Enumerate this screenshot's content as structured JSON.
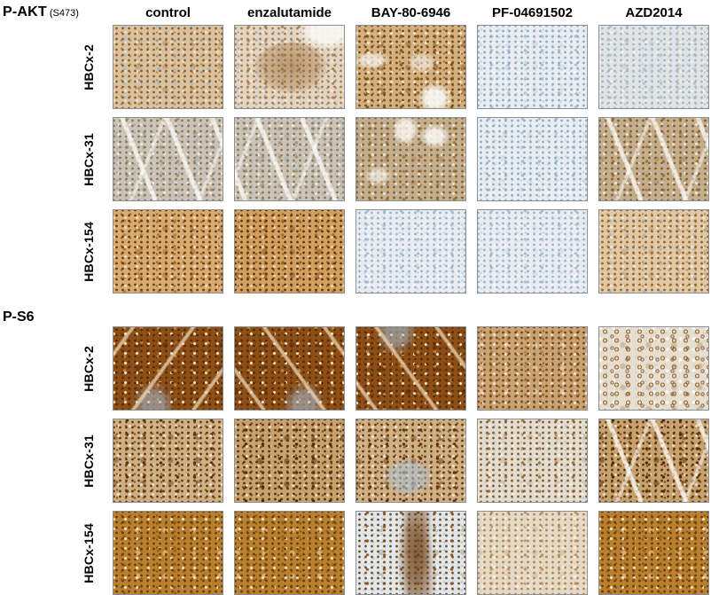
{
  "figure": {
    "treatments": [
      "control",
      "enzalutamide",
      "BAY-80-6946",
      "PF-04691502",
      "AZD2014"
    ],
    "palette": {
      "dab_strong": "#7a4410",
      "dab_moderate": "#9a6a30",
      "dab_weak": "#c89a64",
      "hematoxylin_blue": "#9db8d2",
      "tile_border": "#8a9097",
      "background": "#ffffff"
    },
    "panels": [
      {
        "id": "pakt",
        "label": "P-AKT",
        "label_sub": "(S473)",
        "rows": [
          {
            "model": "HBCx-2",
            "cells": [
              {
                "treatment": "control",
                "intensity": "moderate",
                "variant": "akt-mod",
                "features": []
              },
              {
                "treatment": "enzalutamide",
                "intensity": "moderate focal",
                "variant": "akt-cluster",
                "features": [
                  "cluster",
                  "palecorner"
                ]
              },
              {
                "treatment": "BAY-80-6946",
                "intensity": "strong patchy",
                "variant": "akt-strong",
                "features": [
                  "palegaps"
                ]
              },
              {
                "treatment": "PF-04691502",
                "intensity": "negative",
                "variant": "pale-blue",
                "features": []
              },
              {
                "treatment": "AZD2014",
                "intensity": "weak",
                "variant": "pale-bluegray",
                "features": []
              }
            ]
          },
          {
            "model": "HBCx-31",
            "cells": [
              {
                "treatment": "control",
                "intensity": "weak-moderate",
                "variant": "graytan",
                "features": [
                  "streaks"
                ]
              },
              {
                "treatment": "enzalutamide",
                "intensity": "weak-moderate",
                "variant": "graytan",
                "features": [
                  "streaks"
                ]
              },
              {
                "treatment": "BAY-80-6946",
                "intensity": "moderate",
                "variant": "tan-streaks",
                "features": [
                  "lumens"
                ]
              },
              {
                "treatment": "PF-04691502",
                "intensity": "negative",
                "variant": "pale-blue",
                "features": []
              },
              {
                "treatment": "AZD2014",
                "intensity": "moderate",
                "variant": "tan-streaks",
                "features": [
                  "streaks"
                ]
              }
            ]
          },
          {
            "model": "HBCx-154",
            "cells": [
              {
                "treatment": "control",
                "intensity": "strong",
                "variant": "orange",
                "features": []
              },
              {
                "treatment": "enzalutamide",
                "intensity": "strong",
                "variant": "orange-strong",
                "features": []
              },
              {
                "treatment": "BAY-80-6946",
                "intensity": "negative",
                "variant": "pale-blue-fine",
                "features": []
              },
              {
                "treatment": "PF-04691502",
                "intensity": "negative",
                "variant": "pale-blue-fine",
                "features": []
              },
              {
                "treatment": "AZD2014",
                "intensity": "weak-moderate",
                "variant": "lighttan",
                "features": []
              }
            ]
          }
        ]
      },
      {
        "id": "ps6",
        "label": "P-S6",
        "label_sub": "",
        "rows": [
          {
            "model": "HBCx-2",
            "cells": [
              {
                "treatment": "control",
                "intensity": "strong",
                "variant": "s6-dark",
                "features": [
                  "stroma"
                ]
              },
              {
                "treatment": "enzalutamide",
                "intensity": "strong",
                "variant": "s6-dark",
                "features": [
                  "stroma"
                ]
              },
              {
                "treatment": "BAY-80-6946",
                "intensity": "strong",
                "variant": "s6-dark",
                "features": [
                  "stroma"
                ]
              },
              {
                "treatment": "PF-04691502",
                "intensity": "moderate",
                "variant": "s6-mod",
                "features": []
              },
              {
                "treatment": "AZD2014",
                "intensity": "weak membranous",
                "variant": "s6-rings",
                "features": []
              }
            ]
          },
          {
            "model": "HBCx-31",
            "cells": [
              {
                "treatment": "control",
                "intensity": "strong mottled",
                "variant": "s6-mottle",
                "features": []
              },
              {
                "treatment": "enzalutamide",
                "intensity": "strong mottled",
                "variant": "s6-mottle-strong",
                "features": []
              },
              {
                "treatment": "BAY-80-6946",
                "intensity": "strong mottled",
                "variant": "s6-mottle",
                "features": [
                  "bluepatch"
                ]
              },
              {
                "treatment": "PF-04691502",
                "intensity": "weak focal",
                "variant": "s6-sparse",
                "features": []
              },
              {
                "treatment": "AZD2014",
                "intensity": "strong mottled",
                "variant": "s6-mottle-strong",
                "features": [
                  "streaks"
                ]
              }
            ]
          },
          {
            "model": "HBCx-154",
            "cells": [
              {
                "treatment": "control",
                "intensity": "strong",
                "variant": "s6-golden",
                "features": []
              },
              {
                "treatment": "enzalutamide",
                "intensity": "strong",
                "variant": "s6-golden",
                "features": []
              },
              {
                "treatment": "BAY-80-6946",
                "intensity": "weak scattered",
                "variant": "s6-palestreak",
                "features": []
              },
              {
                "treatment": "PF-04691502",
                "intensity": "weak",
                "variant": "s6-paletan",
                "features": []
              },
              {
                "treatment": "AZD2014",
                "intensity": "strong",
                "variant": "s6-golden",
                "features": []
              }
            ]
          }
        ]
      }
    ]
  }
}
